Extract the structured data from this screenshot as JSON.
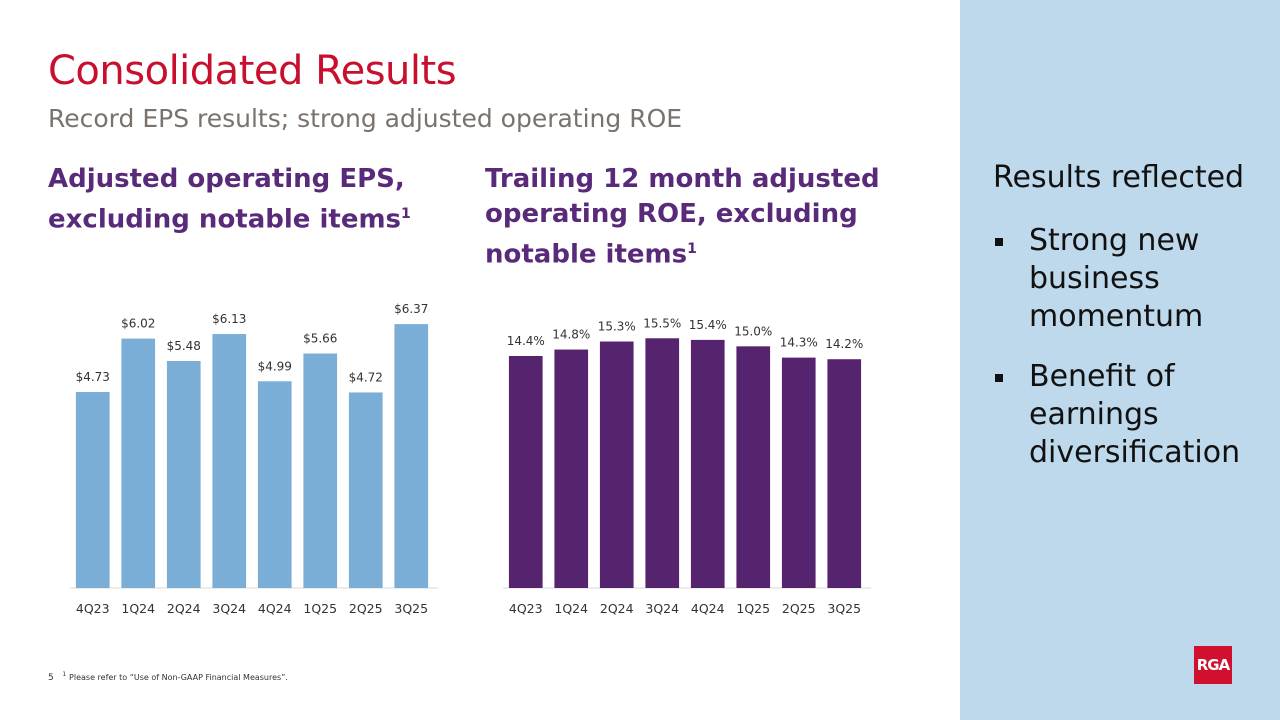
{
  "header": {
    "title": "Consolidated Results",
    "subtitle": "Record EPS results; strong adjusted operating ROE"
  },
  "chart_data": [
    {
      "type": "bar",
      "title": "Adjusted operating EPS, excluding notable items",
      "title_note": "1",
      "categories": [
        "4Q23",
        "1Q24",
        "2Q24",
        "3Q24",
        "4Q24",
        "1Q25",
        "2Q25",
        "3Q25"
      ],
      "values": [
        4.73,
        6.02,
        5.48,
        6.13,
        4.99,
        5.66,
        4.72,
        6.37
      ],
      "value_labels": [
        "$4.73",
        "$6.02",
        "$5.48",
        "$6.13",
        "$4.99",
        "$5.66",
        "$4.72",
        "$6.37"
      ],
      "color": "#7aaed6",
      "ylim": [
        0,
        7
      ]
    },
    {
      "type": "bar",
      "title": "Trailing 12 month adjusted operating ROE, excluding notable items",
      "title_note": "1",
      "categories": [
        "4Q23",
        "1Q24",
        "2Q24",
        "3Q24",
        "4Q24",
        "1Q25",
        "2Q25",
        "3Q25"
      ],
      "values": [
        14.4,
        14.8,
        15.3,
        15.5,
        15.4,
        15.0,
        14.3,
        14.2
      ],
      "value_labels": [
        "14.4%",
        "14.8%",
        "15.3%",
        "15.5%",
        "15.4%",
        "15.0%",
        "14.3%",
        "14.2%"
      ],
      "color": "#56236e",
      "ylim": [
        0,
        18
      ]
    }
  ],
  "sidebar": {
    "heading": "Results reflected",
    "bullets": [
      "Strong new business momentum",
      "Benefit of earnings diversification"
    ]
  },
  "footer": {
    "page": "5",
    "note_mark": "1",
    "note": "Please refer to “Use of Non-GAAP Financial Measures”.",
    "logo": "RGA"
  }
}
